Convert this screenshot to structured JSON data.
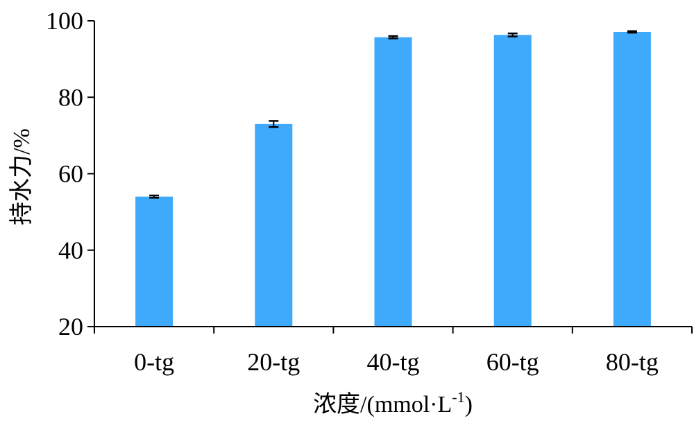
{
  "chart_data": {
    "type": "bar",
    "categories": [
      "0-tg",
      "20-tg",
      "40-tg",
      "60-tg",
      "80-tg"
    ],
    "series": [
      {
        "values": [
          54.0,
          73.0,
          95.7,
          96.3,
          97.1
        ],
        "errors": [
          0.3,
          0.8,
          0.3,
          0.4,
          0.2
        ]
      }
    ],
    "ylabel": "持水力/%",
    "xlabel_main": "浓度/(mmol·L",
    "xlabel_sup": "-1",
    "xlabel_close": ")",
    "ylim": [
      20,
      100
    ],
    "yticks": [
      20,
      40,
      60,
      80,
      100
    ],
    "grid": false,
    "bar_color": "#3fa9fc",
    "error_color": "#000000"
  }
}
